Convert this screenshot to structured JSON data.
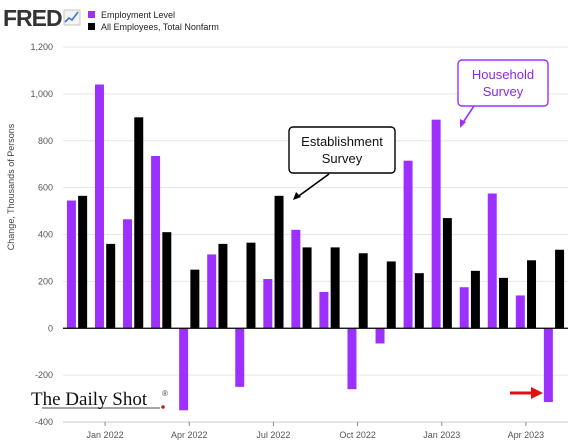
{
  "header": {
    "logo_text": "FRED",
    "accent_colors": {
      "household": "#9b30ff",
      "establishment": "#000000",
      "arrow_red": "#dd1111"
    }
  },
  "annotations": {
    "establishment_line1": "Establishment",
    "establishment_line2": "Survey",
    "household_line1": "Household",
    "household_line2": "Survey"
  },
  "watermark": {
    "text": "The Daily Shot",
    "mark": "®"
  },
  "chart_data": {
    "type": "bar",
    "ylabel": "Change, Thousands of Persons",
    "ylim": [
      -400,
      1200
    ],
    "yticks": [
      -400,
      -200,
      0,
      200,
      400,
      600,
      800,
      1000,
      1200
    ],
    "ytick_labels": [
      "-400",
      "-200",
      "0",
      "200",
      "400",
      "600",
      "800",
      "1,000",
      "1,200"
    ],
    "grid": true,
    "legend_position": "top-left",
    "periods": [
      "2021-12",
      "2022-01",
      "2022-02",
      "2022-03",
      "2022-04",
      "2022-05",
      "2022-06",
      "2022-07",
      "2022-08",
      "2022-09",
      "2022-10",
      "2022-11",
      "2022-12",
      "2023-01",
      "2023-02",
      "2023-03",
      "2023-04",
      "2023-05"
    ],
    "xtick_labels": [
      {
        "label": "Jan 2022",
        "period": "2022-01"
      },
      {
        "label": "Apr 2022",
        "period": "2022-04"
      },
      {
        "label": "Jul 2022",
        "period": "2022-07"
      },
      {
        "label": "Oct 2022",
        "period": "2022-10"
      },
      {
        "label": "Jan 2023",
        "period": "2023-01"
      },
      {
        "label": "Apr 2023",
        "period": "2023-04"
      }
    ],
    "series": [
      {
        "name": "Employment Level",
        "color": "#9b30ff",
        "values": [
          545,
          1040,
          465,
          735,
          -350,
          315,
          -250,
          210,
          420,
          155,
          -260,
          -65,
          715,
          890,
          175,
          575,
          140,
          -315
        ]
      },
      {
        "name": "All Employees, Total Nonfarm",
        "color": "#000000",
        "values": [
          565,
          360,
          900,
          410,
          250,
          360,
          365,
          565,
          345,
          345,
          320,
          285,
          235,
          470,
          245,
          215,
          290,
          335
        ]
      }
    ]
  }
}
